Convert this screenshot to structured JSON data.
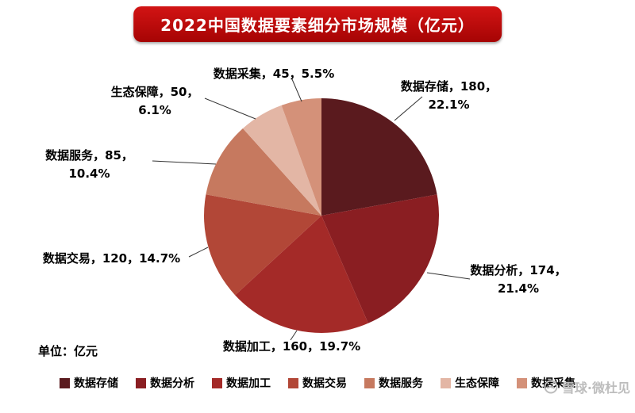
{
  "title": "2022中国数据要素细分市场规模（亿元）",
  "unit_note": "单位：亿元",
  "watermark": "雪球·微杜见",
  "chart_data": {
    "type": "pie",
    "title": "2022中国数据要素细分市场规模（亿元）",
    "unit": "亿元",
    "categories": [
      "数据存储",
      "数据分析",
      "数据加工",
      "数据交易",
      "数据服务",
      "生态保障",
      "数据采集"
    ],
    "values": [
      180,
      174,
      160,
      120,
      85,
      50,
      45
    ],
    "percents": [
      "22.1%",
      "21.4%",
      "19.7%",
      "14.7%",
      "10.4%",
      "6.1%",
      "5.5%"
    ],
    "colors": [
      "#5a1a1e",
      "#8a1e22",
      "#a42a28",
      "#b24737",
      "#c6795f",
      "#e3b6a5",
      "#d49179"
    ],
    "start_angle_deg": -90,
    "direction": "clockwise",
    "legend_position": "bottom"
  },
  "callouts": {
    "storage": {
      "line1": "数据存储，180，",
      "line2": "22.1%"
    },
    "analysis": {
      "line1": "数据分析，174，",
      "line2": "21.4%"
    },
    "processing": {
      "line1": "数据加工，160，19.7%"
    },
    "trading": {
      "line1": "数据交易，120，14.7%"
    },
    "service": {
      "line1": "数据服务，85，",
      "line2": "10.4%"
    },
    "eco": {
      "line1": "生态保障，50，",
      "line2": "6.1%"
    },
    "collection": {
      "line1": "数据采集，45，5.5%"
    }
  }
}
